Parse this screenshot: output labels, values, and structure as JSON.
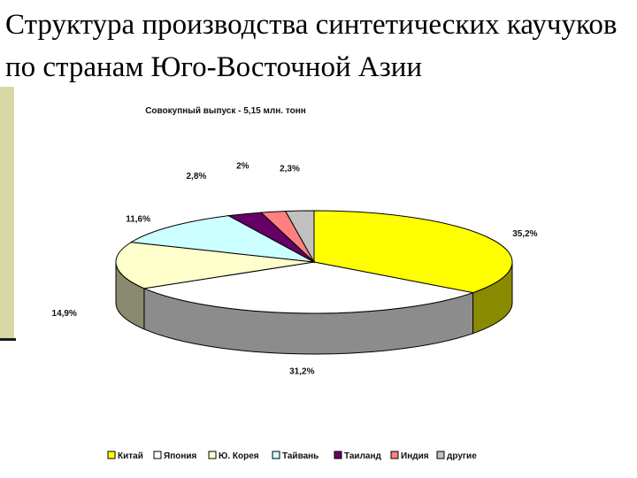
{
  "slide": {
    "title": "Структура производства синтетических каучуков по странам Юго-Восточной Азии"
  },
  "colors": {
    "accent_bar": "#d9d9a6"
  },
  "chart_data": {
    "type": "pie",
    "title": "Совокупный выпуск - 5,15 млн. тонн",
    "three_d": true,
    "legend_position": "bottom",
    "slices": [
      {
        "name": "Китай",
        "value": 35.2,
        "label": "35,2%",
        "color": "#ffff00",
        "side": "#8a8a00"
      },
      {
        "name": "Япония",
        "value": 31.2,
        "label": "31,2%",
        "color": "#ffffff",
        "side": "#8c8c8c"
      },
      {
        "name": "Ю. Корея",
        "value": 14.9,
        "label": "14,9%",
        "color": "#ffffcc",
        "side": "#8a8a6e"
      },
      {
        "name": "Тайвань",
        "value": 11.6,
        "label": "11,6%",
        "color": "#ccffff",
        "side": "#6e8a8a"
      },
      {
        "name": "Таиланд",
        "value": 2.8,
        "label": "2,8%",
        "color": "#660066",
        "side": "#330033"
      },
      {
        "name": "Индия",
        "value": 2.0,
        "label": "2%",
        "color": "#ff8080",
        "side": "#8a4545"
      },
      {
        "name": "другие",
        "value": 2.3,
        "label": "2,3%",
        "color": "#c0c0c0",
        "side": "#707070"
      }
    ]
  }
}
